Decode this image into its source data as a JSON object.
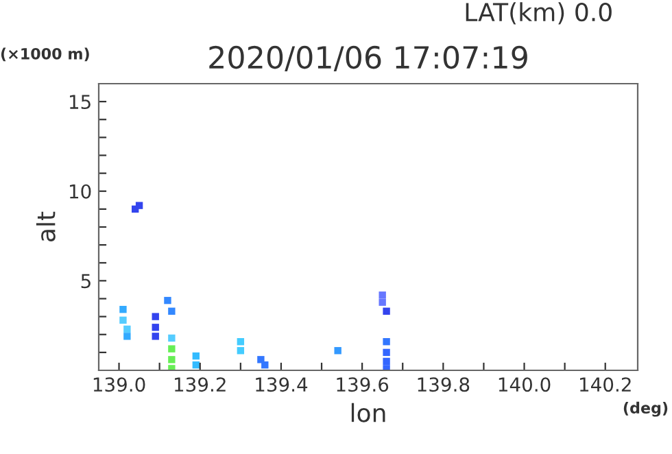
{
  "chart_data": {
    "type": "scatter",
    "title": "2020/01/06 17:07:19",
    "xlabel": "lon",
    "ylabel": "alt",
    "annotations": [
      "LAT(km) 0.0",
      "(×1000 m)",
      "(deg)"
    ],
    "x": [
      139.04,
      139.05,
      139.01,
      139.01,
      139.02,
      139.02,
      139.09,
      139.09,
      139.09,
      139.12,
      139.13,
      139.13,
      139.13,
      139.13,
      139.13,
      139.19,
      139.19,
      139.3,
      139.3,
      139.35,
      139.36,
      139.54,
      139.66,
      139.66,
      139.66,
      139.66,
      139.65,
      139.65,
      139.66
    ],
    "values": [
      9.0,
      9.2,
      3.4,
      2.8,
      2.3,
      1.9,
      3.0,
      2.4,
      1.9,
      3.9,
      3.3,
      1.8,
      1.2,
      0.6,
      0.1,
      0.8,
      0.3,
      1.6,
      1.1,
      0.6,
      0.3,
      1.1,
      1.6,
      1.0,
      0.5,
      0.1,
      4.2,
      3.8,
      3.3
    ],
    "colors": [
      "#3344ee",
      "#3344ee",
      "#33aaff",
      "#55ccff",
      "#55ccff",
      "#33aaff",
      "#3344ee",
      "#3344ee",
      "#3344ee",
      "#3388ff",
      "#3388ff",
      "#55ccff",
      "#66ee55",
      "#66ee55",
      "#66ee55",
      "#33bbff",
      "#33bbff",
      "#44ccff",
      "#44ccff",
      "#3377ff",
      "#3377ff",
      "#3399ff",
      "#3377ff",
      "#3366ff",
      "#3366ff",
      "#3366ff",
      "#6677ff",
      "#6677ff",
      "#3344ee"
    ],
    "marker": "square",
    "grid": false,
    "xlim": [
      138.95,
      140.28
    ],
    "ylim": [
      0,
      16
    ],
    "xticks": [
      {
        "value": 139.0,
        "label": "139.0"
      },
      {
        "value": 139.1,
        "label": null
      },
      139.2,
      {
        "value": 139.3,
        "label": null
      },
      139.4,
      {
        "value": 139.5,
        "label": null
      },
      139.6,
      {
        "value": 139.7,
        "label": null
      },
      139.8,
      {
        "value": 139.9,
        "label": null
      },
      {
        "value": 140.0,
        "label": "140.0"
      },
      {
        "value": 140.1,
        "label": null
      },
      140.2
    ],
    "yticks": [
      {
        "value": 1,
        "label": null
      },
      {
        "value": 2,
        "label": null
      },
      {
        "value": 3,
        "label": null
      },
      {
        "value": 4,
        "label": null
      },
      5,
      {
        "value": 6,
        "label": null
      },
      {
        "value": 7,
        "label": null
      },
      {
        "value": 8,
        "label": null
      },
      {
        "value": 9,
        "label": null
      },
      10,
      {
        "value": 11,
        "label": null
      },
      {
        "value": 12,
        "label": null
      },
      {
        "value": 13,
        "label": null
      },
      {
        "value": 14,
        "label": null
      },
      15
    ]
  }
}
